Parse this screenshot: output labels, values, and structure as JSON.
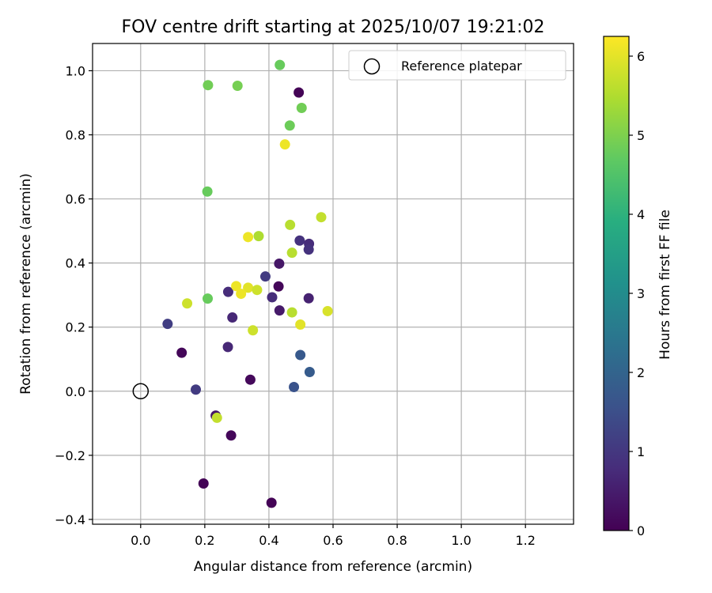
{
  "chart_data": {
    "type": "scatter",
    "title": "FOV centre drift starting at 2025/10/07 19:21:02",
    "xlabel": "Angular distance from reference (arcmin)",
    "ylabel": "Rotation from reference (arcmin)",
    "xlim": [
      -0.15,
      1.35
    ],
    "ylim": [
      -0.415,
      1.085
    ],
    "xticks": [
      0.0,
      0.2,
      0.4,
      0.6,
      0.8,
      1.0,
      1.2
    ],
    "xtick_labels": [
      "0.0",
      "0.2",
      "0.4",
      "0.6",
      "0.8",
      "1.0",
      "1.2"
    ],
    "yticks": [
      -0.4,
      -0.2,
      0.0,
      0.2,
      0.4,
      0.6,
      0.8,
      1.0
    ],
    "ytick_labels": [
      "−0.4",
      "−0.2",
      "0.0",
      "0.2",
      "0.4",
      "0.6",
      "0.8",
      "1.0"
    ],
    "grid": true,
    "legend": {
      "position": "top-right",
      "label": "Reference platepar"
    },
    "reference_point": {
      "x": 0.0,
      "y": 0.0
    },
    "colorbar": {
      "label": "Hours from first FF file",
      "colormap": "viridis",
      "range": [
        0,
        6.25
      ],
      "ticks": [
        0,
        1,
        2,
        3,
        4,
        5,
        6
      ],
      "tick_labels": [
        "0",
        "1",
        "2",
        "3",
        "4",
        "5",
        "6"
      ]
    },
    "points": [
      {
        "x": 0.493,
        "y": 0.932,
        "h": 0.05
      },
      {
        "x": 0.43,
        "y": 0.327,
        "h": 0.1
      },
      {
        "x": 0.128,
        "y": 0.12,
        "h": 0.1
      },
      {
        "x": 0.342,
        "y": 0.036,
        "h": 0.15
      },
      {
        "x": 0.282,
        "y": -0.138,
        "h": 0.1
      },
      {
        "x": 0.196,
        "y": -0.288,
        "h": 0.05
      },
      {
        "x": 0.408,
        "y": -0.348,
        "h": 0.05
      },
      {
        "x": 0.432,
        "y": 0.398,
        "h": 0.4
      },
      {
        "x": 0.433,
        "y": 0.252,
        "h": 0.45
      },
      {
        "x": 0.234,
        "y": -0.076,
        "h": 0.4
      },
      {
        "x": 0.524,
        "y": 0.29,
        "h": 0.6
      },
      {
        "x": 0.41,
        "y": 0.293,
        "h": 0.8
      },
      {
        "x": 0.286,
        "y": 0.23,
        "h": 0.7
      },
      {
        "x": 0.272,
        "y": 0.138,
        "h": 0.7
      },
      {
        "x": 0.273,
        "y": 0.31,
        "h": 0.8
      },
      {
        "x": 0.496,
        "y": 0.47,
        "h": 0.9
      },
      {
        "x": 0.525,
        "y": 0.46,
        "h": 0.8
      },
      {
        "x": 0.524,
        "y": 0.442,
        "h": 0.9
      },
      {
        "x": 0.389,
        "y": 0.358,
        "h": 1.1
      },
      {
        "x": 0.084,
        "y": 0.21,
        "h": 1.15
      },
      {
        "x": 0.172,
        "y": 0.005,
        "h": 1.1
      },
      {
        "x": 0.498,
        "y": 0.113,
        "h": 1.75
      },
      {
        "x": 0.527,
        "y": 0.06,
        "h": 1.8
      },
      {
        "x": 0.478,
        "y": 0.013,
        "h": 1.6
      },
      {
        "x": 0.21,
        "y": 0.955,
        "h": 4.9
      },
      {
        "x": 0.302,
        "y": 0.953,
        "h": 4.95
      },
      {
        "x": 0.434,
        "y": 1.018,
        "h": 4.8
      },
      {
        "x": 0.502,
        "y": 0.884,
        "h": 4.9
      },
      {
        "x": 0.465,
        "y": 0.829,
        "h": 4.85
      },
      {
        "x": 0.208,
        "y": 0.623,
        "h": 4.8
      },
      {
        "x": 0.209,
        "y": 0.289,
        "h": 4.8
      },
      {
        "x": 0.45,
        "y": 0.77,
        "h": 6.1
      },
      {
        "x": 0.563,
        "y": 0.543,
        "h": 5.7
      },
      {
        "x": 0.466,
        "y": 0.519,
        "h": 5.6
      },
      {
        "x": 0.368,
        "y": 0.484,
        "h": 5.5
      },
      {
        "x": 0.335,
        "y": 0.481,
        "h": 6.1
      },
      {
        "x": 0.472,
        "y": 0.432,
        "h": 5.6
      },
      {
        "x": 0.298,
        "y": 0.328,
        "h": 6.1
      },
      {
        "x": 0.335,
        "y": 0.323,
        "h": 6.0
      },
      {
        "x": 0.363,
        "y": 0.316,
        "h": 5.8
      },
      {
        "x": 0.313,
        "y": 0.304,
        "h": 6.1
      },
      {
        "x": 0.145,
        "y": 0.274,
        "h": 5.8
      },
      {
        "x": 0.472,
        "y": 0.246,
        "h": 5.6
      },
      {
        "x": 0.583,
        "y": 0.25,
        "h": 5.9
      },
      {
        "x": 0.498,
        "y": 0.208,
        "h": 6.0
      },
      {
        "x": 0.35,
        "y": 0.19,
        "h": 5.8
      },
      {
        "x": 0.238,
        "y": -0.083,
        "h": 5.7
      }
    ]
  }
}
